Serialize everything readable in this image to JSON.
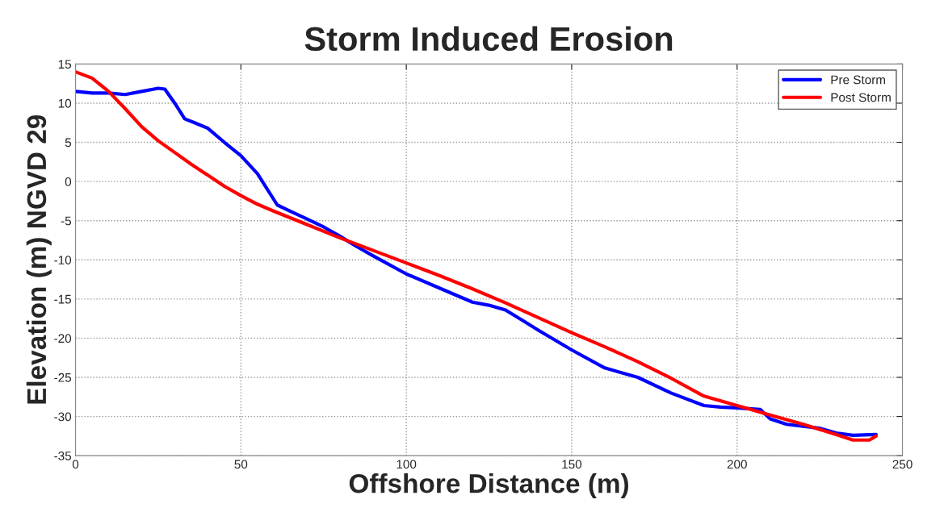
{
  "chart_data": {
    "type": "line",
    "title": "Storm Induced Erosion",
    "xlabel": "Offshore Distance (m)",
    "ylabel": "Elevation (m) NGVD 29",
    "xlim": [
      0,
      250
    ],
    "xticks": [
      0,
      50,
      100,
      150,
      200,
      250
    ],
    "ylim": [
      -35,
      15
    ],
    "yticks": [
      -35,
      -30,
      -25,
      -20,
      -15,
      -10,
      -5,
      0,
      5,
      10,
      15
    ],
    "grid": true,
    "legend": "top right",
    "line_style": "solid",
    "marker": "none",
    "series": [
      {
        "name": "Pre Storm",
        "color": "#0000ff",
        "x": [
          0,
          5,
          10,
          15,
          20,
          25,
          27,
          30,
          33,
          36,
          40,
          45,
          50,
          55,
          58,
          61,
          65,
          70,
          75,
          80,
          85,
          90,
          100,
          110,
          120,
          125,
          130,
          135,
          140,
          150,
          160,
          170,
          180,
          190,
          195,
          200,
          207,
          210,
          215,
          225,
          230,
          235,
          242
        ],
        "values": [
          11.5,
          11.3,
          11.3,
          11.1,
          11.5,
          11.9,
          11.8,
          10,
          8,
          7.5,
          6.8,
          5,
          3.3,
          1,
          -1,
          -3,
          -3.8,
          -4.8,
          -5.8,
          -7,
          -8.3,
          -9.5,
          -11.8,
          -13.6,
          -15.4,
          -15.8,
          -16.4,
          -17.7,
          -19,
          -21.5,
          -23.8,
          -25,
          -27,
          -28.6,
          -28.8,
          -28.9,
          -29.1,
          -30.3,
          -31,
          -31.5,
          -32.1,
          -32.4,
          -32.3
        ]
      },
      {
        "name": "Post Storm",
        "color": "#ff0000",
        "x": [
          0,
          5,
          10,
          15,
          20,
          25,
          30,
          35,
          40,
          45,
          50,
          55,
          60,
          70,
          80,
          90,
          100,
          110,
          120,
          130,
          140,
          150,
          160,
          170,
          180,
          190,
          200,
          210,
          220,
          230,
          235,
          240,
          242
        ],
        "values": [
          14,
          13.2,
          11.5,
          9.3,
          7,
          5.2,
          3.7,
          2.2,
          0.8,
          -0.6,
          -1.8,
          -2.9,
          -3.8,
          -5.5,
          -7.2,
          -8.8,
          -10.4,
          -12,
          -13.7,
          -15.5,
          -17.4,
          -19.3,
          -21.1,
          -23,
          -25.1,
          -27.4,
          -28.6,
          -29.8,
          -31,
          -32.3,
          -33,
          -33,
          -32.5
        ]
      }
    ]
  }
}
